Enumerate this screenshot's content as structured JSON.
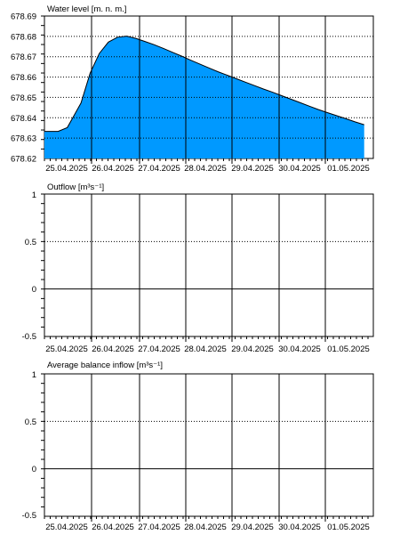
{
  "chart_data": [
    {
      "type": "area",
      "title": "Water level [m. n. m.]",
      "x_labels": [
        "25.04.2025",
        "26.04.2025",
        "27.04.2025",
        "28.04.2025",
        "29.04.2025",
        "30.04.2025",
        "01.05.2025"
      ],
      "y_ticks": [
        "678.62",
        "678.63",
        "678.64",
        "678.65",
        "678.66",
        "678.67",
        "678.68",
        "678.69"
      ],
      "ylim": [
        678.62,
        678.69
      ],
      "xlim": [
        0,
        7.2
      ],
      "grid": true,
      "fill_color": "#0099ff",
      "series": [
        {
          "x": [
            0.0,
            0.3,
            0.5,
            0.8,
            1.0,
            1.2,
            1.4,
            1.6,
            1.8,
            2.0,
            2.2,
            2.4,
            2.6,
            2.8,
            3.0,
            3.2,
            3.4,
            3.6,
            3.8,
            4.0,
            4.2,
            4.4,
            4.6,
            4.8,
            5.0,
            5.2,
            5.4,
            5.6,
            5.8,
            6.0,
            6.2,
            6.4,
            6.6,
            6.8,
            7.0
          ],
          "y": [
            678.6333,
            678.6333,
            678.6352,
            678.6472,
            678.6619,
            678.6716,
            678.6772,
            678.6796,
            678.6801,
            678.679,
            678.6775,
            678.6759,
            678.6741,
            678.6722,
            678.6703,
            678.6683,
            678.6664,
            678.6645,
            678.6626,
            678.6609,
            678.6592,
            678.6575,
            678.6558,
            678.6541,
            678.6525,
            678.6508,
            678.6491,
            678.6474,
            678.6457,
            678.644,
            678.6425,
            678.641,
            678.6395,
            678.638,
            678.6366
          ]
        }
      ]
    },
    {
      "type": "line",
      "title": "Outflow [m³s⁻¹]",
      "x_labels": [
        "25.04.2025",
        "26.04.2025",
        "27.04.2025",
        "28.04.2025",
        "29.04.2025",
        "30.04.2025",
        "01.05.2025"
      ],
      "y_ticks": [
        "1",
        "0.5",
        "0",
        "-0.5"
      ],
      "ylim": [
        -0.5,
        1
      ],
      "grid": true,
      "series": []
    },
    {
      "type": "line",
      "title": "Average balance inflow  [m³s⁻¹]",
      "x_labels": [
        "25.04.2025",
        "26.04.2025",
        "27.04.2025",
        "28.04.2025",
        "29.04.2025",
        "30.04.2025",
        "01.05.2025"
      ],
      "y_ticks": [
        "1",
        "0.5",
        "0",
        "-0.5"
      ],
      "ylim": [
        -0.5,
        1
      ],
      "grid": true,
      "series": []
    }
  ]
}
